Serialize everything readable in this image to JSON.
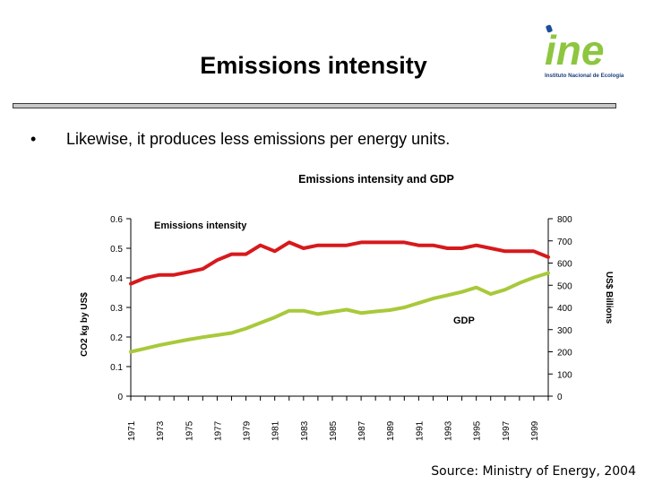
{
  "slide": {
    "title": "Emissions intensity",
    "bullet_marker": "•",
    "bullet_text": "Likewise, it produces less emissions per energy units.",
    "source": "Source: Ministry of Energy, 2004"
  },
  "logo": {
    "text": "ine",
    "caption": "Instituto Nacional de Ecología",
    "colors": {
      "letters": "#8dc63f",
      "dot": "#1a4f9c",
      "caption": "#1a3f7a"
    }
  },
  "chart_data": {
    "type": "line",
    "title": "Emissions intensity and GDP",
    "ylabel_left": "CO2 kg by US$",
    "ylabel_right": "US$ Billions",
    "ylim_left": [
      0,
      0.6
    ],
    "ylim_right": [
      0,
      800
    ],
    "left_ticks": [
      "0.6",
      "0.5",
      "0.4",
      "0.3",
      "0.2",
      "0.1",
      "0"
    ],
    "right_ticks": [
      "800",
      "700",
      "600",
      "500",
      "400",
      "300",
      "200",
      "100",
      "0"
    ],
    "x": [
      1971,
      1972,
      1973,
      1974,
      1975,
      1976,
      1977,
      1978,
      1979,
      1980,
      1981,
      1982,
      1983,
      1984,
      1985,
      1986,
      1987,
      1988,
      1989,
      1990,
      1991,
      1992,
      1993,
      1994,
      1995,
      1996,
      1997,
      1998,
      1999,
      2000
    ],
    "x_tick_labels": [
      "1971",
      "1973",
      "1975",
      "1977",
      "1979",
      "1981",
      "1983",
      "1985",
      "1987",
      "1989",
      "1991",
      "1993",
      "1995",
      "1997",
      "1999"
    ],
    "series": [
      {
        "name": "Emissions intensity",
        "axis": "left",
        "color": "#d7191c",
        "values": [
          0.38,
          0.4,
          0.41,
          0.41,
          0.42,
          0.43,
          0.46,
          0.48,
          0.48,
          0.51,
          0.49,
          0.52,
          0.5,
          0.51,
          0.51,
          0.51,
          0.52,
          0.52,
          0.52,
          0.52,
          0.51,
          0.51,
          0.5,
          0.5,
          0.51,
          0.5,
          0.49,
          0.49,
          0.49,
          0.47
        ]
      },
      {
        "name": "GDP",
        "axis": "right",
        "color": "#a8c93a",
        "values": [
          200,
          215,
          230,
          243,
          255,
          266,
          275,
          285,
          305,
          330,
          355,
          385,
          385,
          370,
          380,
          390,
          375,
          382,
          388,
          400,
          420,
          440,
          455,
          470,
          490,
          460,
          480,
          510,
          535,
          555
        ]
      }
    ],
    "annotations": [
      "Emissions intensity",
      "GDP"
    ]
  }
}
